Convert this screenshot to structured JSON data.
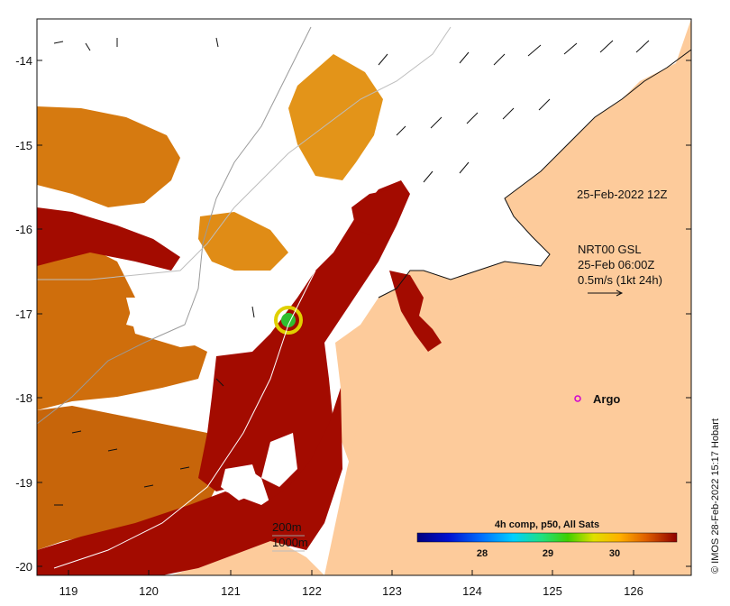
{
  "map": {
    "x_ticks": [
      "119",
      "120",
      "121",
      "122",
      "123",
      "124",
      "125",
      "126"
    ],
    "y_ticks": [
      "-14",
      "-15",
      "-16",
      "-17",
      "-18",
      "-19",
      "-20"
    ],
    "land_color": "#fdcb9b",
    "warm_sst_color": "#a30b00",
    "mid_sst_color": "#c86408",
    "cool_sst_color": "#e79a1c"
  },
  "annotations": {
    "time_label": "25-Feb-2022 12Z",
    "current_source": "NRT00 GSL",
    "current_time": "25-Feb 06:00Z",
    "current_scale": "0.5m/s (1kt 24h)",
    "argo_label": "Argo",
    "isobath_200": "200m",
    "isobath_1000": "1000m"
  },
  "colorbar": {
    "title": "4h comp, p50, All Sats",
    "ticks": [
      "28",
      "29",
      "30"
    ]
  },
  "credit": "© IMOS 28-Feb-2022 15:17 Hobart"
}
